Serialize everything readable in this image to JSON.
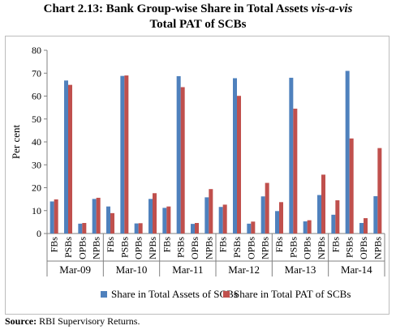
{
  "title_line1_prefix": "Chart 2.13: Bank Group-wise Share in Total Assets ",
  "title_line1_italic": "vis-a-vis",
  "title_line2": "Total PAT of SCBs",
  "source_label": "Source:",
  "source_text": " RBI Supervisory Returns.",
  "chart_data": {
    "type": "bar",
    "ylabel": "Per cent",
    "ylim": [
      0,
      80
    ],
    "yticks": [
      0,
      10,
      20,
      30,
      40,
      50,
      60,
      70,
      80
    ],
    "groups": [
      "Mar-09",
      "Mar-10",
      "Mar-11",
      "Mar-12",
      "Mar-13",
      "Mar-14"
    ],
    "subcategories": [
      "FBs",
      "PSBs",
      "OPBs",
      "NPBs"
    ],
    "grid": false,
    "legend_position": "bottom",
    "series": [
      {
        "name": "Share in Total Assets of SCBs",
        "color": "#4f81bd",
        "values": [
          [
            14.0,
            66.8,
            4.3,
            15.1
          ],
          [
            11.8,
            68.8,
            4.4,
            15.1
          ],
          [
            11.2,
            68.7,
            4.2,
            15.8
          ],
          [
            11.6,
            67.8,
            4.3,
            16.2
          ],
          [
            9.8,
            68.0,
            5.3,
            16.8
          ],
          [
            8.2,
            71.0,
            4.6,
            16.3
          ]
        ]
      },
      {
        "name": "Share in Total PAT of SCBs",
        "color": "#c0504d",
        "values": [
          [
            14.9,
            64.9,
            4.6,
            15.6
          ],
          [
            8.9,
            69.0,
            4.5,
            17.6
          ],
          [
            11.8,
            63.9,
            4.6,
            19.4
          ],
          [
            12.6,
            60.1,
            5.2,
            22.1
          ],
          [
            13.7,
            54.5,
            5.8,
            25.7
          ],
          [
            14.5,
            41.5,
            6.7,
            37.3
          ]
        ]
      }
    ]
  }
}
